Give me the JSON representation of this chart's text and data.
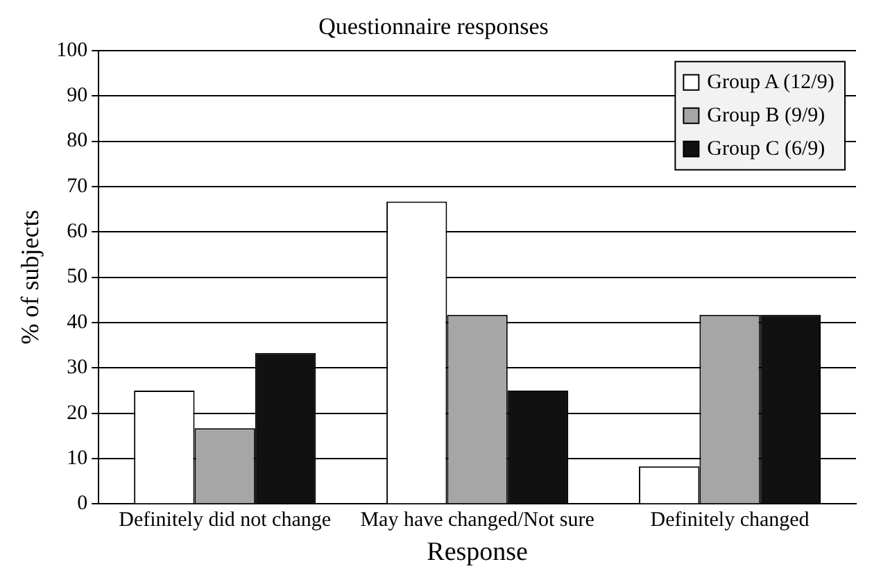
{
  "chart_data": {
    "type": "bar",
    "title": "Questionnaire responses",
    "xlabel": "Response",
    "ylabel": "% of subjects",
    "categories": [
      "Definitely did not change",
      "May have changed/Not sure",
      "Definitely changed"
    ],
    "series": [
      {
        "name": "Group A (12/9)",
        "color": "#ffffff",
        "values": [
          25,
          66.7,
          8.3
        ]
      },
      {
        "name": "Group B (9/9)",
        "color": "#a6a6a6",
        "values": [
          16.7,
          41.7,
          41.7
        ]
      },
      {
        "name": "Group C (6/9)",
        "color": "#111111",
        "values": [
          33.3,
          25,
          41.7
        ]
      }
    ],
    "ylim": [
      0,
      100
    ],
    "yticks": [
      0,
      10,
      20,
      30,
      40,
      50,
      60,
      70,
      80,
      90,
      100
    ],
    "grid": "y",
    "legend": "top right"
  }
}
